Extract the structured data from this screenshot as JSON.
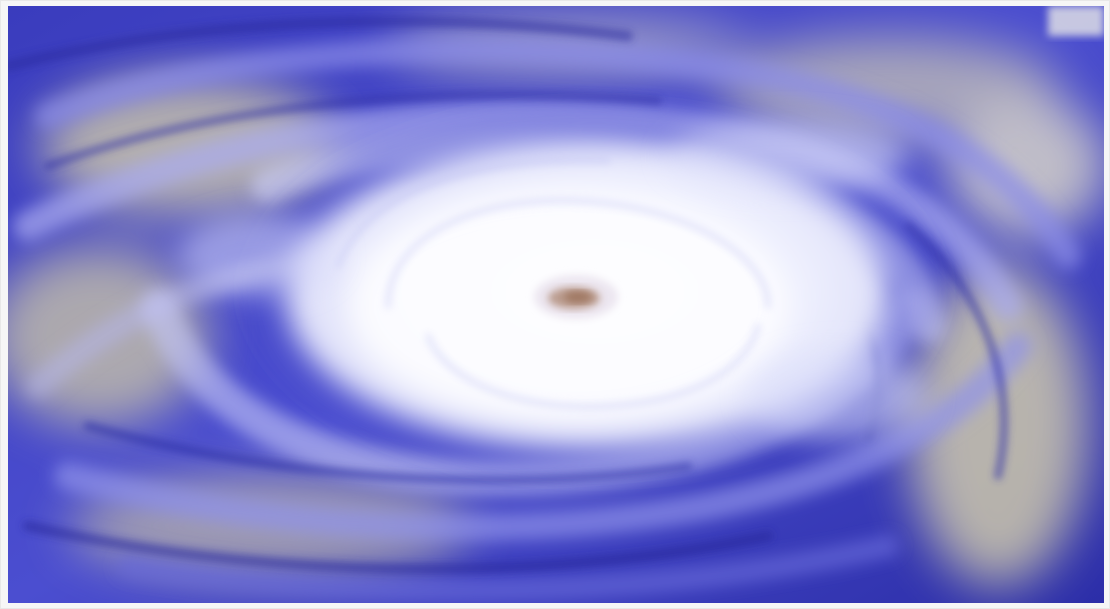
{
  "image": {
    "subject": "hurricane-satellite-view",
    "colors": {
      "deep_blue": "#2f2fb0",
      "mid_blue": "#5557d6",
      "cloud_white": "#f4f6ff",
      "haze_yellow": "#d8d2a6",
      "eye_brown": "#a07a62",
      "frame": "#f6f6f6"
    }
  }
}
